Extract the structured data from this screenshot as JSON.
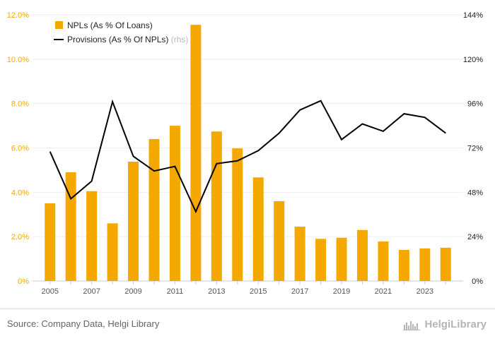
{
  "chart_data": {
    "type": "bar+line",
    "categories": [
      "2005",
      "2006",
      "2007",
      "2008",
      "2009",
      "2010",
      "2011",
      "2012",
      "2013",
      "2014",
      "2015",
      "2016",
      "2017",
      "2018",
      "2019",
      "2020",
      "2021",
      "2022",
      "2023",
      "2024"
    ],
    "x_tick_labels": [
      "2005",
      "2007",
      "2009",
      "2011",
      "2013",
      "2015",
      "2017",
      "2019",
      "2021",
      "2023"
    ],
    "series": [
      {
        "name": "NPLs (As % Of Loans)",
        "kind": "bar",
        "axis": "left",
        "color": "#f5a800",
        "values": [
          3.5,
          4.9,
          4.05,
          2.6,
          5.38,
          6.4,
          7.0,
          11.55,
          6.74,
          5.98,
          4.67,
          3.6,
          2.45,
          1.9,
          1.95,
          2.3,
          1.78,
          1.4,
          1.47,
          1.5
        ]
      },
      {
        "name": "Provisions (As % Of NPLs)",
        "name_suffix": "(rhs)",
        "kind": "line",
        "axis": "right",
        "color": "#000000",
        "values": [
          70,
          44.5,
          54,
          97,
          67.5,
          59.5,
          62,
          37.5,
          63.5,
          65,
          70.5,
          80,
          92.5,
          97.5,
          76.5,
          85,
          81,
          90.5,
          88.5,
          80
        ]
      }
    ],
    "left_axis": {
      "min": 0,
      "max": 12,
      "ticks": [
        "0%",
        "2.0%",
        "4.0%",
        "6.0%",
        "8.0%",
        "10.0%",
        "12.0%"
      ],
      "color": "#f5a800"
    },
    "right_axis": {
      "min": 0,
      "max": 144,
      "ticks": [
        "0%",
        "24%",
        "48%",
        "72%",
        "96%",
        "120%",
        "144%"
      ],
      "color": "#222222"
    },
    "grid": true,
    "legend_position": "top-left"
  },
  "footer": {
    "source": "Source: Company Data, Helgi Library",
    "brand": "HelgiLibrary"
  }
}
